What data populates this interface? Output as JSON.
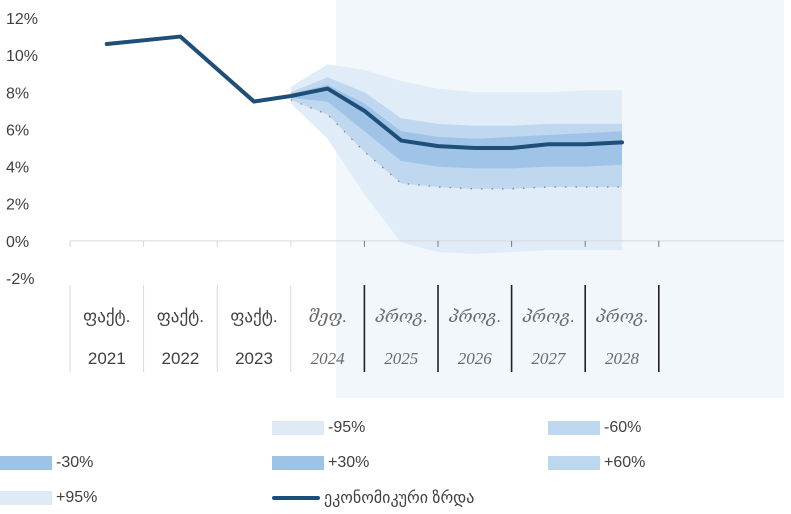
{
  "chart_data": {
    "type": "area",
    "title": "",
    "xlabel": "",
    "ylabel": "",
    "ylim": [
      -2,
      12
    ],
    "y_ticks": [
      "12%",
      "10%",
      "8%",
      "6%",
      "4%",
      "2%",
      "0%",
      "-2%"
    ],
    "grid": false,
    "legend_position": "bottom",
    "categories": [
      {
        "top": "ფაქტ.",
        "bottom": "2021"
      },
      {
        "top": "ფაქტ.",
        "bottom": "2022"
      },
      {
        "top": "ფაქტ.",
        "bottom": "2023"
      },
      {
        "top": "შეფ.",
        "bottom": "2024"
      },
      {
        "top": "პროგ.",
        "bottom": "2025"
      },
      {
        "top": "პროგ.",
        "bottom": "2026"
      },
      {
        "top": "პროგ.",
        "bottom": "2027"
      },
      {
        "top": "პროგ.",
        "bottom": "2028"
      }
    ],
    "main_series": {
      "name": "ეკონომიკური ზრდა",
      "color": "#1f4e79",
      "values": [
        10.6,
        11.0,
        7.5,
        8.2,
        5.4,
        5.0,
        5.2,
        5.3
      ]
    },
    "fan_x": [
      2.5,
      3,
      3.5,
      4,
      4.5,
      5,
      5.5,
      6,
      6.5,
      7
    ],
    "fan_center": [
      7.8,
      8.2,
      7.0,
      5.4,
      5.1,
      4.9,
      5.0,
      5.1,
      5.2,
      5.3
    ],
    "bands": [
      {
        "name": "-95%",
        "color": "#deebf7",
        "values": [
          7.4,
          5.5,
          2.5,
          -0.1,
          -0.6,
          -0.7,
          -0.6,
          -0.5,
          -0.5,
          -0.5
        ]
      },
      {
        "name": "-60%",
        "color": "#bdd7ee",
        "values": [
          7.6,
          6.8,
          4.8,
          3.1,
          2.9,
          2.8,
          2.8,
          2.9,
          2.9,
          2.9
        ]
      },
      {
        "name": "-30%",
        "color": "#9dc3e6",
        "values": [
          7.7,
          7.5,
          5.9,
          4.3,
          4.0,
          3.9,
          3.9,
          4.0,
          4.0,
          4.1
        ]
      },
      {
        "name": "+30%",
        "color": "#9dc3e6",
        "values": [
          7.9,
          8.4,
          7.4,
          5.9,
          5.6,
          5.5,
          5.6,
          5.7,
          5.8,
          5.9
        ]
      },
      {
        "name": "+60%",
        "color": "#bdd7ee",
        "values": [
          8.0,
          8.8,
          8.0,
          6.6,
          6.3,
          6.2,
          6.2,
          6.3,
          6.3,
          6.3
        ]
      },
      {
        "name": "+95%",
        "color": "#deebf7",
        "values": [
          8.3,
          9.5,
          9.2,
          8.6,
          8.2,
          8.0,
          8.0,
          8.0,
          8.1,
          8.1
        ]
      }
    ],
    "forecast_shading_color": "#f2f7fc"
  },
  "legend": {
    "band_minus95": "-95%",
    "band_minus60": "-60%",
    "band_minus30": "-30%",
    "band_plus30": "+30%",
    "band_plus60": "+60%",
    "band_plus95": "+95%",
    "line_label": "ეკონომიკური ზრდა"
  },
  "colors": {
    "band_95": "#deebf7",
    "band_60": "#bdd7ee",
    "band_30": "#9dc3e6",
    "line": "#1f4e79",
    "axis": "#d9d9d9"
  }
}
